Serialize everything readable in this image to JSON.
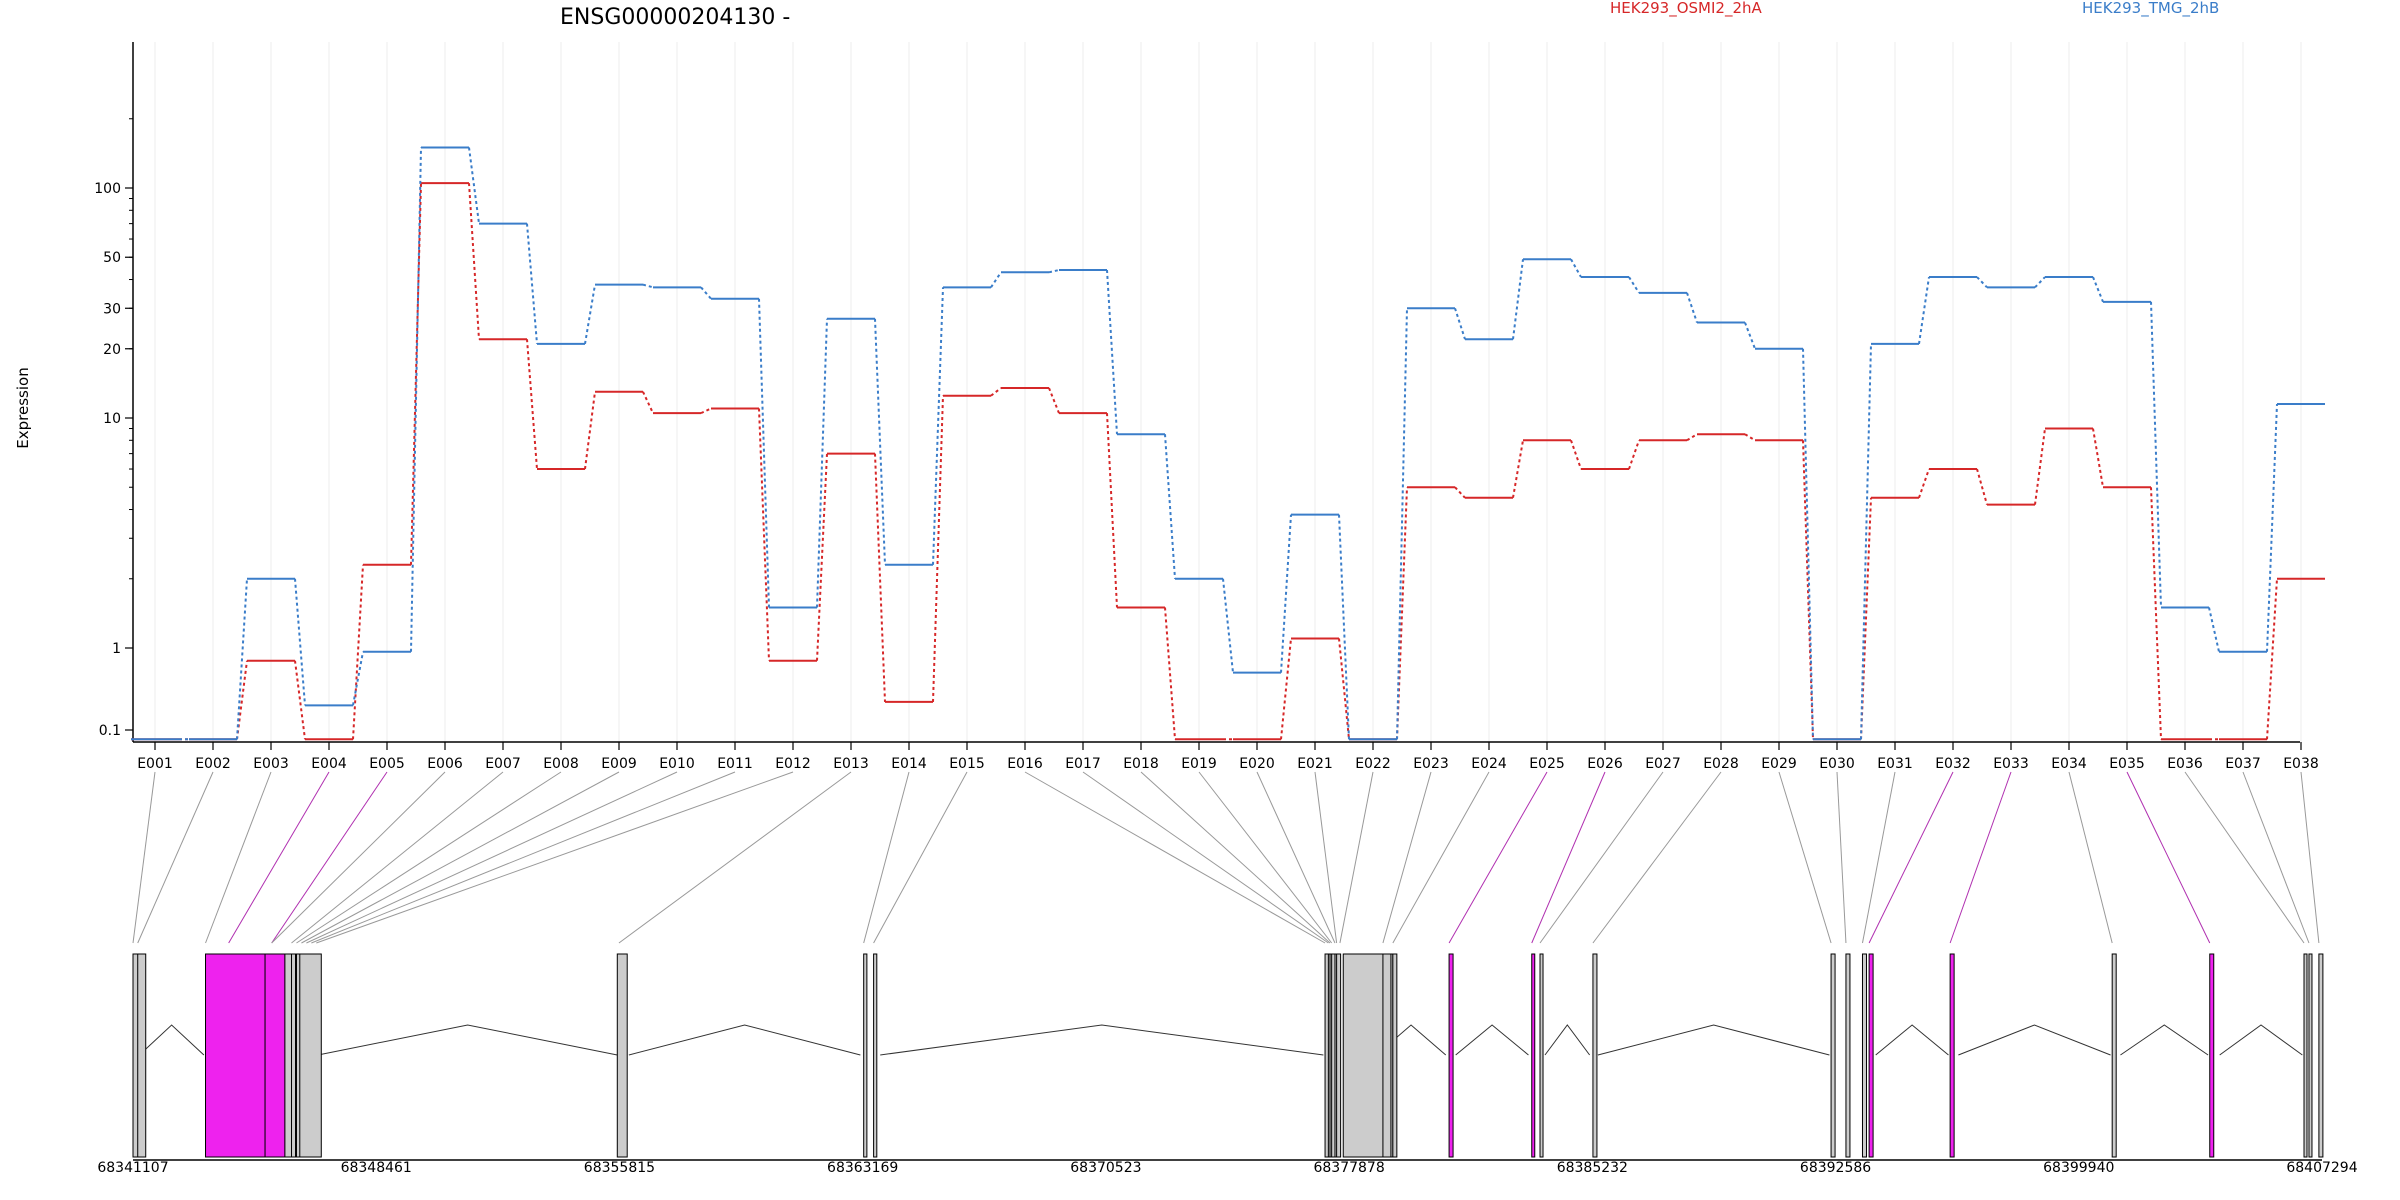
{
  "chart_data": {
    "type": "line",
    "title": "ENSG00000204130 -",
    "ylabel": "Expression",
    "xlabel": "",
    "y_scale": "log",
    "yticks": [
      {
        "value": 0.1,
        "label": "0.1"
      },
      {
        "value": 1,
        "label": "1"
      },
      {
        "value": 10,
        "label": "10"
      },
      {
        "value": 20,
        "label": "20"
      },
      {
        "value": 30,
        "label": "30"
      },
      {
        "value": 50,
        "label": "50"
      },
      {
        "value": 100,
        "label": "100"
      }
    ],
    "categories": [
      "E001",
      "E002",
      "E003",
      "E004",
      "E005",
      "E006",
      "E007",
      "E008",
      "E009",
      "E010",
      "E011",
      "E012",
      "E013",
      "E014",
      "E015",
      "E016",
      "E017",
      "E018",
      "E019",
      "E020",
      "E021",
      "E022",
      "E023",
      "E024",
      "E025",
      "E026",
      "E027",
      "E028",
      "E029",
      "E030",
      "E031",
      "E032",
      "E033",
      "E034",
      "E035",
      "E036",
      "E037",
      "E038"
    ],
    "series": [
      {
        "name": "HEK293_OSMI2_2hA",
        "color": "#d62728",
        "values": [
          0.07,
          0.07,
          0.7,
          0.07,
          2.3,
          105,
          22,
          6,
          13,
          10.5,
          11,
          0.7,
          7,
          0.22,
          12.5,
          13.5,
          10.5,
          1.5,
          0.07,
          0.07,
          1.1,
          0.07,
          5,
          4.5,
          8,
          6,
          8,
          8.5,
          8,
          0.07,
          4.5,
          6,
          4.2,
          9,
          5,
          0.07,
          0.07,
          2
        ]
      },
      {
        "name": "HEK293_TMG_2hB",
        "color": "#3a7dc9",
        "values": [
          0.07,
          0.07,
          2,
          0.2,
          0.9,
          150,
          70,
          21,
          38,
          37,
          33,
          1.5,
          27,
          2.3,
          37,
          43,
          44,
          8.5,
          2,
          0.5,
          3.8,
          0.07,
          30,
          22,
          49,
          41,
          35,
          26,
          20,
          0.07,
          21,
          41,
          37,
          41,
          32,
          1.5,
          0.9,
          11.5
        ]
      }
    ],
    "legend_placement": "top",
    "grid": "vertical",
    "gene_model": {
      "coordinates": [
        "68341107",
        "68348461",
        "68355815",
        "68363169",
        "68370523",
        "68377878",
        "68385232",
        "68392586",
        "68399940",
        "68407294"
      ],
      "highlight_color": "#ee22ee",
      "exon_color": "#cccccc",
      "exons": [
        {
          "name": "E001",
          "highlighted": false
        },
        {
          "name": "E002",
          "highlighted": false
        },
        {
          "name": "E003",
          "highlighted": false
        },
        {
          "name": "E004",
          "highlighted": true
        },
        {
          "name": "E005",
          "highlighted": true
        },
        {
          "name": "E006",
          "highlighted": false
        },
        {
          "name": "E007",
          "highlighted": false
        },
        {
          "name": "E008",
          "highlighted": false
        },
        {
          "name": "E009",
          "highlighted": false
        },
        {
          "name": "E010",
          "highlighted": false
        },
        {
          "name": "E011",
          "highlighted": false
        },
        {
          "name": "E012",
          "highlighted": false
        },
        {
          "name": "E013",
          "highlighted": false
        },
        {
          "name": "E014",
          "highlighted": false
        },
        {
          "name": "E015",
          "highlighted": false
        },
        {
          "name": "E016",
          "highlighted": false
        },
        {
          "name": "E017",
          "highlighted": false
        },
        {
          "name": "E018",
          "highlighted": false
        },
        {
          "name": "E019",
          "highlighted": false
        },
        {
          "name": "E020",
          "highlighted": false
        },
        {
          "name": "E021",
          "highlighted": false
        },
        {
          "name": "E022",
          "highlighted": false
        },
        {
          "name": "E023",
          "highlighted": false
        },
        {
          "name": "E024",
          "highlighted": false
        },
        {
          "name": "E025",
          "highlighted": true
        },
        {
          "name": "E026",
          "highlighted": true
        },
        {
          "name": "E027",
          "highlighted": false
        },
        {
          "name": "E028",
          "highlighted": false
        },
        {
          "name": "E029",
          "highlighted": false
        },
        {
          "name": "E030",
          "highlighted": false
        },
        {
          "name": "E031",
          "highlighted": false
        },
        {
          "name": "E032",
          "highlighted": true
        },
        {
          "name": "E033",
          "highlighted": true
        },
        {
          "name": "E034",
          "highlighted": false
        },
        {
          "name": "E035",
          "highlighted": true
        },
        {
          "name": "E036",
          "highlighted": false
        },
        {
          "name": "E037",
          "highlighted": false
        },
        {
          "name": "E038",
          "highlighted": false
        }
      ]
    }
  }
}
